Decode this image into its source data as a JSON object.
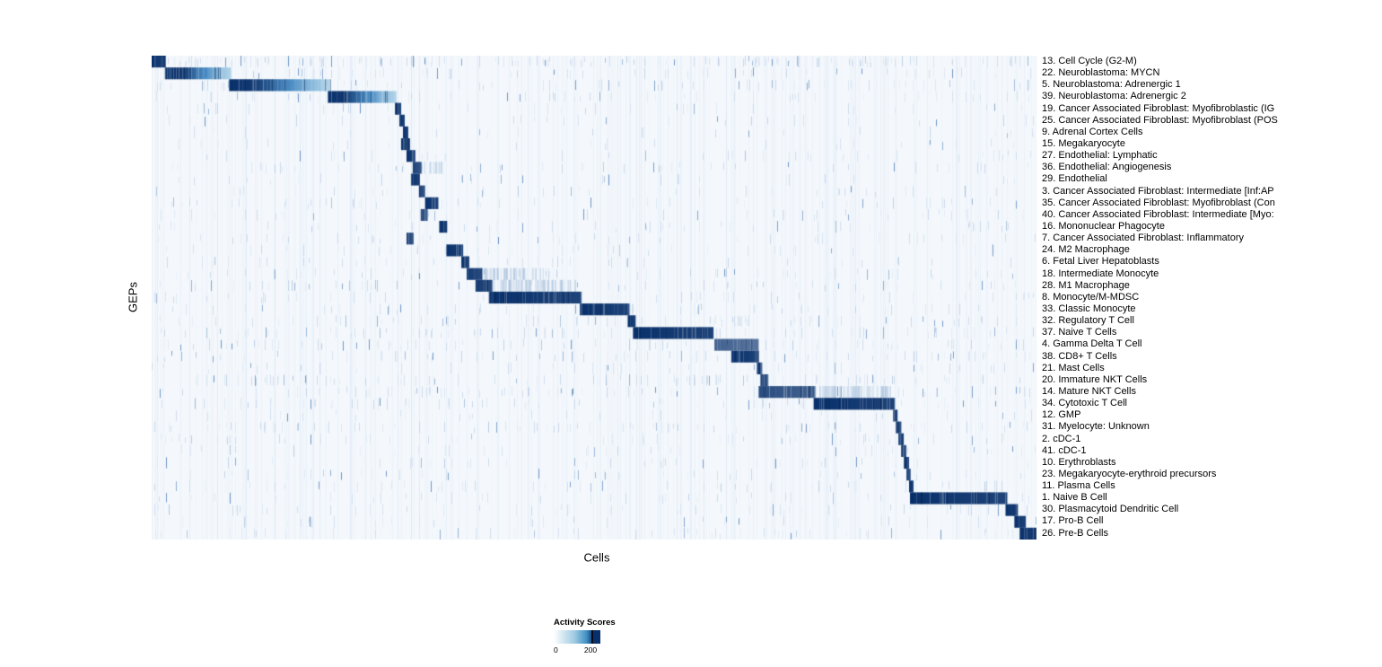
{
  "chart_data": {
    "type": "heatmap",
    "title": "",
    "xlabel": "Cells",
    "ylabel": "GEPs",
    "value_range": [
      0,
      200
    ],
    "colormap": {
      "low": "#f7fbff",
      "mid": "#4292c6",
      "high": "#08306b",
      "background": "#f4f8fc"
    },
    "legend": {
      "title": "Activity Scores",
      "min_label": "0",
      "max_label": "200",
      "ticks": [
        0,
        200
      ],
      "position": "bottom"
    },
    "rows": [
      {
        "label": "13. Cell Cycle (G2-M)",
        "block": [
          0.0,
          0.016
        ],
        "intensity": 1.0,
        "fade": 0,
        "noise": 0.95
      },
      {
        "label": "22. Neuroblastoma: MYCN",
        "block": [
          0.015,
          0.09
        ],
        "intensity": 1.0,
        "fade": 1,
        "noise": 0.35
      },
      {
        "label": "5. Neuroblastoma: Adrenergic 1",
        "block": [
          0.088,
          0.202
        ],
        "intensity": 0.95,
        "fade": 1,
        "noise": 0.35
      },
      {
        "label": "39. Neuroblastoma: Adrenergic 2",
        "block": [
          0.199,
          0.277
        ],
        "intensity": 0.9,
        "fade": 1,
        "noise": 0.3
      },
      {
        "label": "19. Cancer Associated Fibroblast: Myofibroblastic (IG",
        "block": [
          0.275,
          0.282
        ],
        "intensity": 1.0,
        "fade": 0,
        "noise": 0.2
      },
      {
        "label": "25. Cancer Associated Fibroblast: Myofibroblast (POS",
        "block": [
          0.28,
          0.286
        ],
        "intensity": 1.0,
        "fade": 0,
        "noise": 0.2
      },
      {
        "label": "9. Adrenal Cortex Cells",
        "block": [
          0.284,
          0.29
        ],
        "intensity": 1.0,
        "fade": 0,
        "noise": 0.15
      },
      {
        "label": "15. Megakaryocyte",
        "block": [
          0.282,
          0.292
        ],
        "intensity": 1.0,
        "fade": 0,
        "noise": 0.2
      },
      {
        "label": "27. Endothelial: Lymphatic",
        "block": [
          0.288,
          0.298
        ],
        "intensity": 1.0,
        "fade": 0,
        "noise": 0.2
      },
      {
        "label": "36. Endothelial: Angiogenesis",
        "block": [
          0.295,
          0.305
        ],
        "intensity": 0.9,
        "fade": 0,
        "noise": 0.25,
        "light": [
          0.305,
          0.335
        ]
      },
      {
        "label": "29. Endothelial",
        "block": [
          0.293,
          0.303
        ],
        "intensity": 1.0,
        "fade": 0,
        "noise": 0.2
      },
      {
        "label": "3. Cancer Associated Fibroblast: Intermediate [Inf:AP",
        "block": [
          0.302,
          0.309
        ],
        "intensity": 0.9,
        "fade": 0,
        "noise": 0.25
      },
      {
        "label": "35. Cancer Associated Fibroblast: Myofibroblast (Con",
        "block": [
          0.309,
          0.324
        ],
        "intensity": 1.0,
        "fade": 0,
        "noise": 0.25
      },
      {
        "label": "40. Cancer Associated Fibroblast: Intermediate [Myo:",
        "block": [
          0.304,
          0.312
        ],
        "intensity": 0.85,
        "fade": 0,
        "noise": 0.25
      },
      {
        "label": "16. Mononuclear Phagocyte",
        "block": [
          0.325,
          0.334
        ],
        "intensity": 1.0,
        "fade": 0,
        "noise": 0.3
      },
      {
        "label": "7. Cancer Associated Fibroblast: Inflammatory",
        "block": [
          0.288,
          0.296
        ],
        "intensity": 0.9,
        "fade": 0,
        "noise": 0.25
      },
      {
        "label": "24. M2 Macrophage",
        "block": [
          0.333,
          0.352
        ],
        "intensity": 1.0,
        "fade": 0,
        "noise": 0.3
      },
      {
        "label": "6. Fetal Liver Hepatoblasts",
        "block": [
          0.35,
          0.359
        ],
        "intensity": 1.0,
        "fade": 0,
        "noise": 0.2
      },
      {
        "label": "18. Intermediate Monocyte",
        "block": [
          0.356,
          0.374
        ],
        "intensity": 0.95,
        "fade": 0,
        "noise": 0.35,
        "light": [
          0.374,
          0.45
        ]
      },
      {
        "label": "28. M1 Macrophage",
        "block": [
          0.366,
          0.385
        ],
        "intensity": 0.95,
        "fade": 0,
        "noise": 0.35,
        "light": [
          0.385,
          0.48
        ]
      },
      {
        "label": "8. Monocyte/M-MDSC",
        "block": [
          0.381,
          0.486
        ],
        "intensity": 1.0,
        "fade": 0,
        "noise": 0.35
      },
      {
        "label": "33. Classic Monocyte",
        "block": [
          0.484,
          0.54
        ],
        "intensity": 1.0,
        "fade": 0,
        "noise": 0.3
      },
      {
        "label": "32. Regulatory T Cell",
        "block": [
          0.538,
          0.547
        ],
        "intensity": 1.0,
        "fade": 0,
        "noise": 0.45
      },
      {
        "label": "37. Naive T Cells",
        "block": [
          0.544,
          0.635
        ],
        "intensity": 1.0,
        "fade": 0,
        "noise": 0.45
      },
      {
        "label": "4. Gamma Delta T Cell",
        "block": [
          0.636,
          0.686
        ],
        "intensity": 0.75,
        "fade": 0,
        "noise": 0.4
      },
      {
        "label": "38. CD8+ T Cells",
        "block": [
          0.655,
          0.686
        ],
        "intensity": 1.0,
        "fade": 0,
        "noise": 0.4
      },
      {
        "label": "21. Mast Cells",
        "block": [
          0.684,
          0.69
        ],
        "intensity": 1.0,
        "fade": 0,
        "noise": 0.2
      },
      {
        "label": "20. Immature NKT Cells",
        "block": [
          0.688,
          0.697
        ],
        "intensity": 0.9,
        "fade": 0,
        "noise": 0.5
      },
      {
        "label": "14. Mature NKT Cells",
        "block": [
          0.686,
          0.75
        ],
        "intensity": 0.85,
        "fade": 0,
        "noise": 0.45,
        "light": [
          0.75,
          0.835
        ]
      },
      {
        "label": "34. Cytotoxic T Cell",
        "block": [
          0.748,
          0.84
        ],
        "intensity": 1.0,
        "fade": 0,
        "noise": 0.45
      },
      {
        "label": "12. GMP",
        "block": [
          0.838,
          0.843
        ],
        "intensity": 1.0,
        "fade": 0,
        "noise": 0.2
      },
      {
        "label": "31. Myelocyte: Unknown",
        "block": [
          0.841,
          0.847
        ],
        "intensity": 0.9,
        "fade": 0,
        "noise": 0.45
      },
      {
        "label": "2. cDC-1",
        "block": [
          0.844,
          0.85
        ],
        "intensity": 1.0,
        "fade": 0,
        "noise": 0.3
      },
      {
        "label": "41. cDC-1",
        "block": [
          0.847,
          0.853
        ],
        "intensity": 0.9,
        "fade": 0,
        "noise": 0.25
      },
      {
        "label": "10. Erythroblasts",
        "block": [
          0.85,
          0.856
        ],
        "intensity": 1.0,
        "fade": 0,
        "noise": 0.25
      },
      {
        "label": "23. Megakaryocyte-erythroid precursors",
        "block": [
          0.853,
          0.858
        ],
        "intensity": 0.9,
        "fade": 0,
        "noise": 0.3
      },
      {
        "label": "11. Plasma Cells",
        "block": [
          0.856,
          0.861
        ],
        "intensity": 1.0,
        "fade": 0,
        "noise": 0.3
      },
      {
        "label": "1. Naive B Cell",
        "block": [
          0.857,
          0.967
        ],
        "intensity": 1.0,
        "fade": 0,
        "noise": 0.3
      },
      {
        "label": "30. Plasmacytoid Dendritic Cell",
        "block": [
          0.965,
          0.979
        ],
        "intensity": 1.0,
        "fade": 0,
        "noise": 0.25
      },
      {
        "label": "17. Pro-B Cell",
        "block": [
          0.975,
          0.988
        ],
        "intensity": 1.0,
        "fade": 0,
        "noise": 0.25
      },
      {
        "label": "26. Pre-B Cells",
        "block": [
          0.981,
          1.0
        ],
        "intensity": 1.0,
        "fade": 0,
        "noise": 0.3
      }
    ]
  }
}
